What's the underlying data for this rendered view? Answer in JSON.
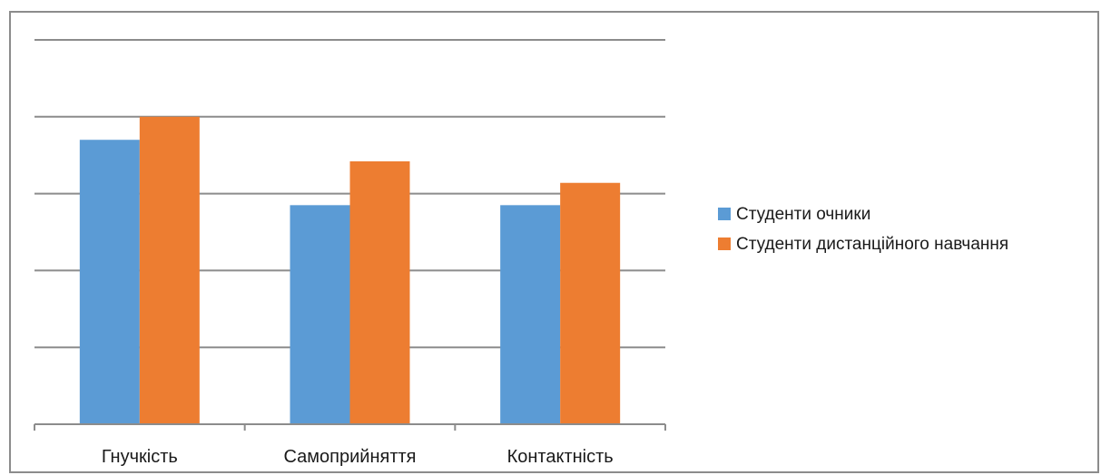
{
  "chart_data": {
    "type": "bar",
    "categories": [
      "Гнучкість",
      "Самоприйняття",
      "Контактність"
    ],
    "series": [
      {
        "name": "Студенти очники",
        "color": "#5b9bd5",
        "values": [
          3.7,
          2.85,
          2.85
        ]
      },
      {
        "name": "Студенти дистанційного навчання",
        "color": "#ed7d31",
        "values": [
          4.0,
          3.42,
          3.14
        ]
      }
    ],
    "ylim": [
      0,
      5
    ],
    "y_gridlines": [
      1,
      2,
      3,
      4,
      5
    ],
    "grid": true,
    "y_tick_labels_shown": false,
    "legend_position": "right"
  }
}
